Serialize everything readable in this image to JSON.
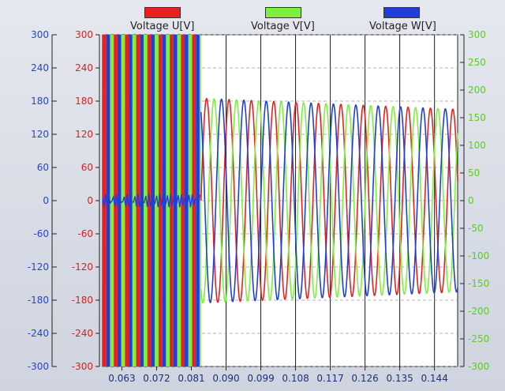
{
  "chart_data": {
    "type": "line",
    "title": "",
    "xlabel": "",
    "x_ticks": [
      "0.063",
      "0.072",
      "0.081",
      "0.090",
      "0.099",
      "0.108",
      "0.117",
      "0.126",
      "0.135",
      "0.144"
    ],
    "xlim": [
      0.058,
      0.15
    ],
    "left_axis_blue": {
      "ticks": [
        "300",
        "240",
        "180",
        "120",
        "60",
        "0",
        "-60",
        "-120",
        "-180",
        "-240",
        "-300"
      ],
      "range": [
        -300,
        300
      ]
    },
    "left_axis_red": {
      "ticks": [
        "300",
        "240",
        "180",
        "120",
        "60",
        "0",
        "-60",
        "-120",
        "-180",
        "-240",
        "-300"
      ],
      "range": [
        -300,
        300
      ]
    },
    "right_axis_green": {
      "ticks": [
        "300",
        "250",
        "200",
        "150",
        "100",
        "50",
        "0",
        "-50",
        "-100",
        "-150",
        "-200",
        "-250",
        "-300"
      ],
      "range": [
        -300,
        300
      ]
    },
    "grid": true,
    "legend_position": "top",
    "series": [
      {
        "name": "Voltage U[V]",
        "color": "#e82020",
        "phase_deg": 0
      },
      {
        "name": "Voltage V[V]",
        "color": "#7cf03c",
        "phase_deg": -120
      },
      {
        "name": "Voltage W[V]",
        "color": "#1f3fd8",
        "phase_deg": 120
      }
    ],
    "transient": {
      "t_end": 0.0835,
      "saturated_range": [
        -300,
        300
      ]
    },
    "steady_state": {
      "t_start": 0.0835,
      "amplitude_start": 185,
      "amplitude_end": 165,
      "period": 0.0058
    }
  }
}
